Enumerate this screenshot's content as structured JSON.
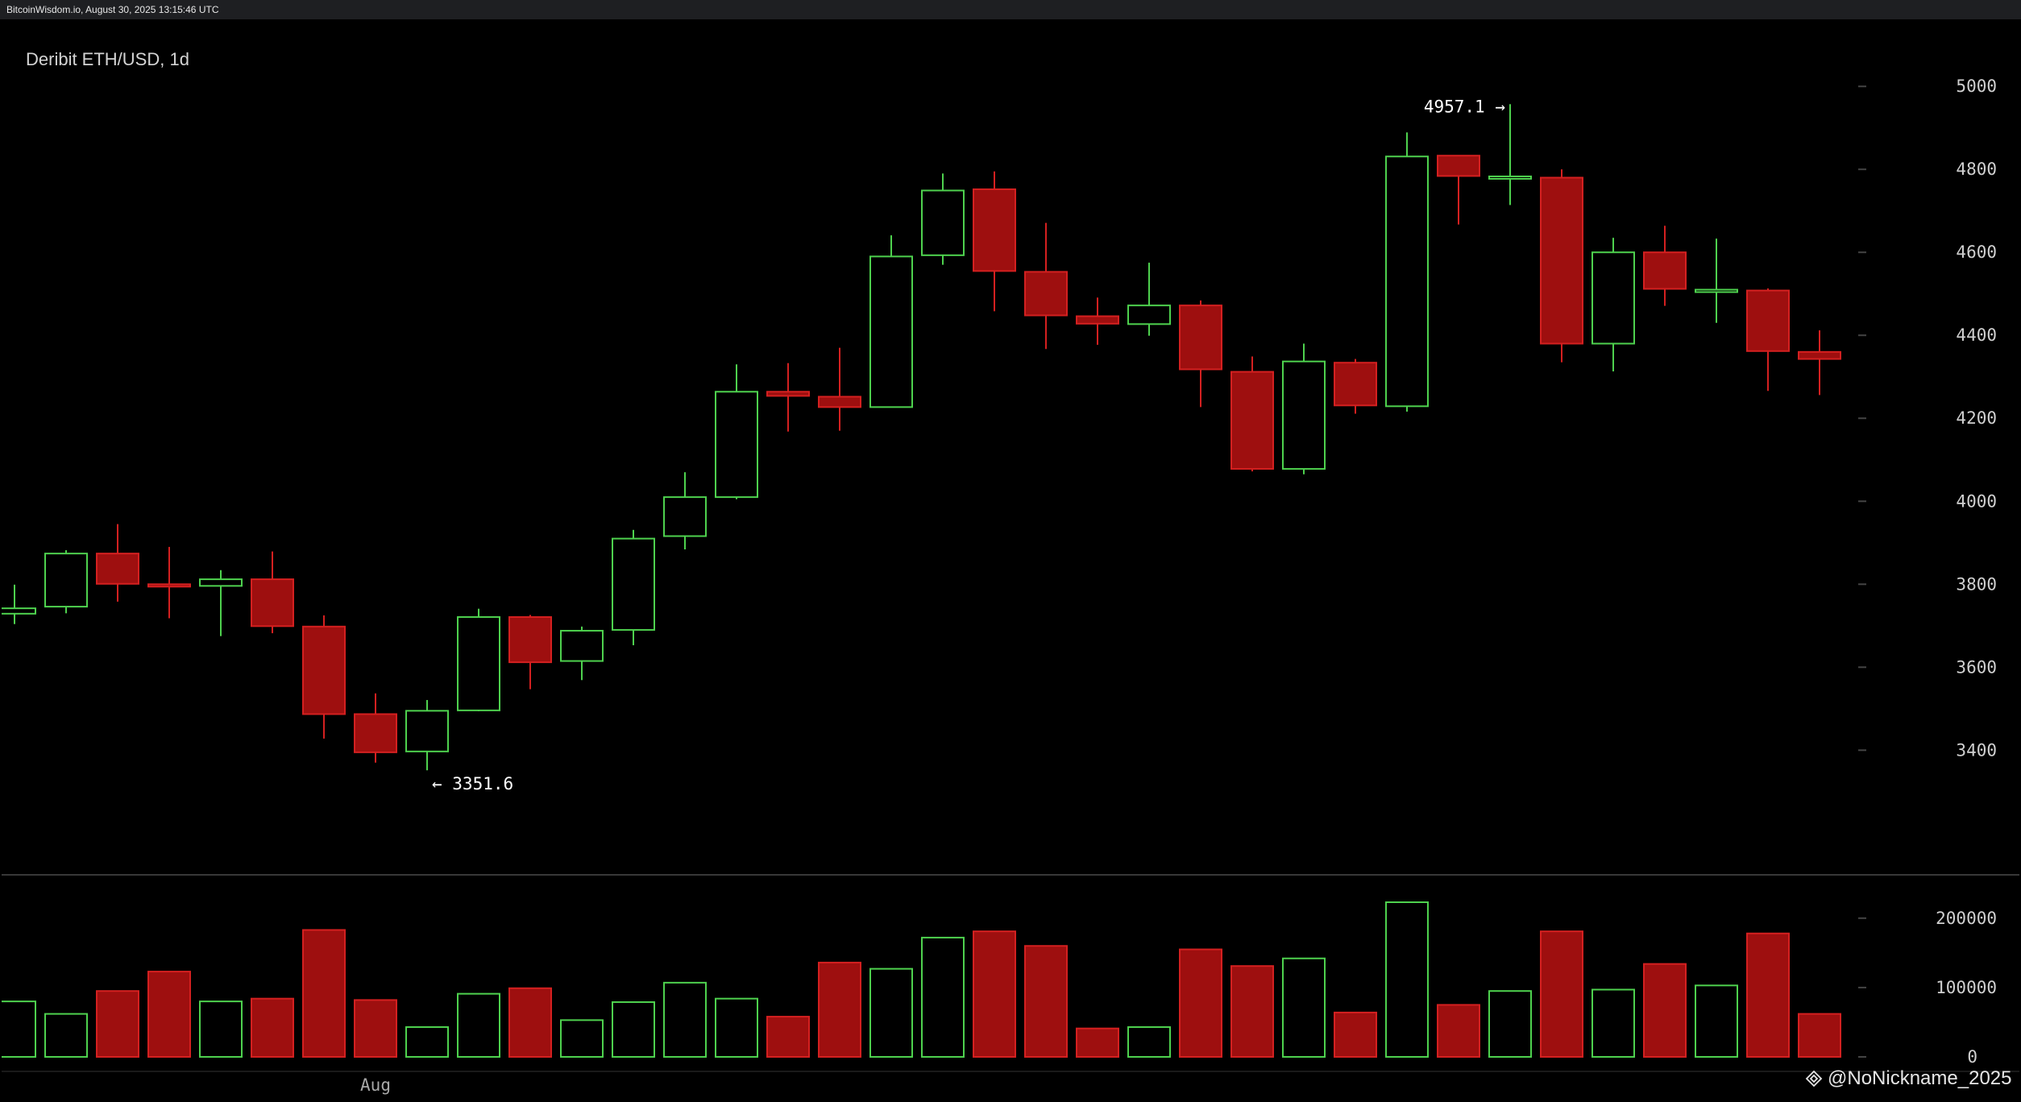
{
  "header": {
    "timestamp_text": "BitcoinWisdom.io, August 30, 2025 13:15:46 UTC"
  },
  "watermark": {
    "text": "@NoNickname_2025",
    "icon": "binance-logo-icon"
  },
  "colors": {
    "up": "#4ed14e",
    "down": "#9e0f0f",
    "down_stroke": "#d42020",
    "axis_text": "#d0d0d0",
    "grid": "#444444"
  },
  "chart_data": [
    {
      "type": "candlestick",
      "title": "Deribit ETH/USD, 1d",
      "ylim": [
        3220,
        5080
      ],
      "yticks": [
        3400,
        3600,
        3800,
        4000,
        4200,
        4400,
        4600,
        4800,
        5000
      ],
      "grid": false,
      "x_labels": [
        {
          "index": 7,
          "label": "Aug"
        }
      ],
      "annotations": [
        {
          "text": "4957.1 →",
          "index": 29,
          "value": 4957.1,
          "side": "left"
        },
        {
          "text": "← 3351.6",
          "index": 8,
          "value": 3351.6,
          "side": "right"
        }
      ],
      "candles": [
        {
          "o": 3729,
          "h": 3799,
          "l": 3704,
          "c": 3742
        },
        {
          "o": 3746,
          "h": 3882,
          "l": 3730,
          "c": 3874
        },
        {
          "o": 3874,
          "h": 3945,
          "l": 3758,
          "c": 3801
        },
        {
          "o": 3800,
          "h": 3890,
          "l": 3718,
          "c": 3797
        },
        {
          "o": 3796,
          "h": 3834,
          "l": 3675,
          "c": 3812
        },
        {
          "o": 3812,
          "h": 3879,
          "l": 3682,
          "c": 3699
        },
        {
          "o": 3698,
          "h": 3725,
          "l": 3428,
          "c": 3487
        },
        {
          "o": 3487,
          "h": 3537,
          "l": 3370,
          "c": 3395
        },
        {
          "o": 3397,
          "h": 3521,
          "l": 3351.6,
          "c": 3495
        },
        {
          "o": 3496,
          "h": 3741,
          "l": 3494,
          "c": 3721
        },
        {
          "o": 3721,
          "h": 3726,
          "l": 3547,
          "c": 3612
        },
        {
          "o": 3615,
          "h": 3698,
          "l": 3569,
          "c": 3688
        },
        {
          "o": 3690,
          "h": 3931,
          "l": 3653,
          "c": 3910
        },
        {
          "o": 3916,
          "h": 4070,
          "l": 3884,
          "c": 4010
        },
        {
          "o": 4010,
          "h": 4330,
          "l": 4005,
          "c": 4264
        },
        {
          "o": 4264,
          "h": 4333,
          "l": 4168,
          "c": 4254
        },
        {
          "o": 4252,
          "h": 4370,
          "l": 4170,
          "c": 4227
        },
        {
          "o": 4227,
          "h": 4641,
          "l": 4226,
          "c": 4590
        },
        {
          "o": 4593,
          "h": 4790,
          "l": 4570,
          "c": 4749
        },
        {
          "o": 4752,
          "h": 4795,
          "l": 4458,
          "c": 4555
        },
        {
          "o": 4553,
          "h": 4671,
          "l": 4367,
          "c": 4448
        },
        {
          "o": 4446,
          "h": 4491,
          "l": 4377,
          "c": 4428
        },
        {
          "o": 4427,
          "h": 4575,
          "l": 4399,
          "c": 4472
        },
        {
          "o": 4472,
          "h": 4484,
          "l": 4227,
          "c": 4318
        },
        {
          "o": 4312,
          "h": 4349,
          "l": 4072,
          "c": 4078
        },
        {
          "o": 4078,
          "h": 4380,
          "l": 4065,
          "c": 4337
        },
        {
          "o": 4334,
          "h": 4343,
          "l": 4211,
          "c": 4231
        },
        {
          "o": 4229,
          "h": 4889,
          "l": 4216,
          "c": 4831
        },
        {
          "o": 4833,
          "h": 4833,
          "l": 4667,
          "c": 4784
        },
        {
          "o": 4783,
          "h": 4957.1,
          "l": 4714,
          "c": 4783
        },
        {
          "o": 4780,
          "h": 4800,
          "l": 4335,
          "c": 4380
        },
        {
          "o": 4380,
          "h": 4635,
          "l": 4313,
          "c": 4600
        },
        {
          "o": 4600,
          "h": 4664,
          "l": 4471,
          "c": 4512
        },
        {
          "o": 4508,
          "h": 4633,
          "l": 4430,
          "c": 4510
        },
        {
          "o": 4508,
          "h": 4513,
          "l": 4266,
          "c": 4362
        },
        {
          "o": 4360,
          "h": 4412,
          "l": 4256,
          "c": 4343
        }
      ]
    },
    {
      "type": "bar",
      "title": "",
      "ylim": [
        0,
        230000
      ],
      "yticks": [
        0,
        100000,
        200000
      ],
      "values": [
        80000,
        62000,
        95000,
        123000,
        80000,
        84000,
        183000,
        82000,
        43000,
        91000,
        99000,
        53000,
        79000,
        107000,
        84000,
        58000,
        136000,
        127000,
        172000,
        181000,
        160000,
        41000,
        43000,
        155000,
        131000,
        142000,
        64000,
        223000,
        75000,
        95000,
        181000,
        97000,
        134000,
        103000,
        178000,
        62000
      ],
      "directions": [
        "up",
        "up",
        "down",
        "down",
        "up",
        "down",
        "down",
        "down",
        "up",
        "up",
        "down",
        "up",
        "up",
        "up",
        "up",
        "down",
        "down",
        "up",
        "up",
        "down",
        "down",
        "down",
        "up",
        "down",
        "down",
        "up",
        "down",
        "up",
        "down",
        "up",
        "down",
        "up",
        "down",
        "up",
        "down",
        "down"
      ]
    }
  ]
}
